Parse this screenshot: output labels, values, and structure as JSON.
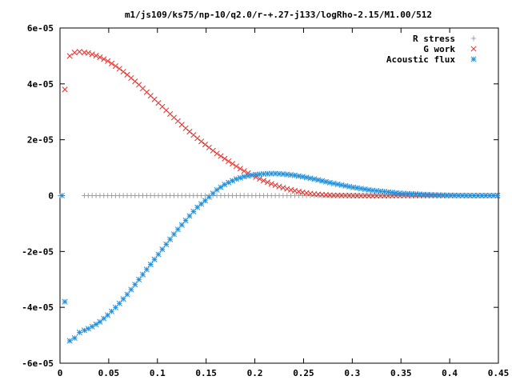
{
  "chart_data": {
    "type": "scatter",
    "title": "m1/js109/ks75/np-10/q2.0/r-+.27-j133/logRho-2.15/M1.00/512",
    "xlabel": "",
    "ylabel": "",
    "xlim": [
      0,
      0.45
    ],
    "ylim": [
      -6e-05,
      6e-05
    ],
    "grid": false,
    "legend_position": "top-right",
    "x_ticks": [
      "0",
      "0.05",
      "0.1",
      "0.15",
      "0.2",
      "0.25",
      "0.3",
      "0.35",
      "0.4",
      "0.45"
    ],
    "y_ticks": [
      "6e-05",
      "4e-05",
      "2e-05",
      "0",
      "-2e-05",
      "-4e-05",
      "-6e-05"
    ],
    "x_tick_values": [
      0,
      0.05,
      0.1,
      0.15,
      0.2,
      0.25,
      0.3,
      0.35,
      0.4,
      0.45
    ],
    "y_tick_values": [
      6e-05,
      4e-05,
      2e-05,
      0,
      -2e-05,
      -4e-05,
      -6e-05
    ],
    "series": [
      {
        "name": "R stress",
        "marker": "plus",
        "color": "#a0a0a0",
        "x": [
          0.0,
          0.05,
          0.1,
          0.15,
          0.2,
          0.25,
          0.3,
          0.35,
          0.4,
          0.45
        ],
        "y": [
          0,
          0,
          0,
          0,
          0,
          0,
          0,
          0,
          0,
          0
        ],
        "sample_step": 0.004
      },
      {
        "name": "G work",
        "marker": "cross",
        "color": "#e0302a",
        "x": [
          0.005,
          0.01,
          0.015,
          0.02,
          0.03,
          0.04,
          0.05,
          0.06,
          0.07,
          0.08,
          0.09,
          0.1,
          0.11,
          0.12,
          0.13,
          0.14,
          0.15,
          0.16,
          0.17,
          0.18,
          0.19,
          0.2,
          0.21,
          0.22,
          0.23,
          0.24,
          0.25,
          0.26,
          0.27,
          0.28,
          0.3,
          0.32,
          0.35,
          0.4,
          0.45
        ],
        "y": [
          3.8e-05,
          5e-05,
          5.12e-05,
          5.15e-05,
          5.1e-05,
          4.97e-05,
          4.8e-05,
          4.57e-05,
          4.3e-05,
          4e-05,
          3.67e-05,
          3.35e-05,
          3.02e-05,
          2.7e-05,
          2.38e-05,
          2.08e-05,
          1.8e-05,
          1.53e-05,
          1.3e-05,
          1.07e-05,
          8.6e-06,
          6.8e-06,
          5.2e-06,
          3.8e-06,
          2.7e-06,
          1.8e-06,
          1.1e-06,
          6e-07,
          3e-07,
          1e-07,
          0,
          -1e-07,
          0,
          0,
          0
        ]
      },
      {
        "name": "Acoustic flux",
        "marker": "star",
        "color": "#1f8fdc",
        "x": [
          0.002,
          0.005,
          0.01,
          0.015,
          0.02,
          0.03,
          0.04,
          0.05,
          0.06,
          0.07,
          0.08,
          0.09,
          0.1,
          0.11,
          0.12,
          0.13,
          0.14,
          0.15,
          0.16,
          0.17,
          0.18,
          0.19,
          0.2,
          0.21,
          0.22,
          0.23,
          0.24,
          0.25,
          0.26,
          0.27,
          0.28,
          0.3,
          0.32,
          0.35,
          0.38,
          0.4,
          0.42,
          0.45
        ],
        "y": [
          0,
          -3.8e-05,
          -5.2e-05,
          -5.1e-05,
          -4.9e-05,
          -4.75e-05,
          -4.55e-05,
          -4.25e-05,
          -3.9e-05,
          -3.5e-05,
          -3.05e-05,
          -2.6e-05,
          -2.15e-05,
          -1.7e-05,
          -1.25e-05,
          -8.5e-06,
          -4.5e-06,
          -1.5e-06,
          1.8e-06,
          4.2e-06,
          5.8e-06,
          6.9e-06,
          7.5e-06,
          7.8e-06,
          7.9e-06,
          7.7e-06,
          7.3e-06,
          6.7e-06,
          6e-06,
          5.2e-06,
          4.4e-06,
          3e-06,
          1.9e-06,
          8e-07,
          3e-07,
          1e-07,
          0,
          0
        ]
      }
    ]
  },
  "colors": {
    "background": "#ffffff",
    "axis": "#000000"
  }
}
